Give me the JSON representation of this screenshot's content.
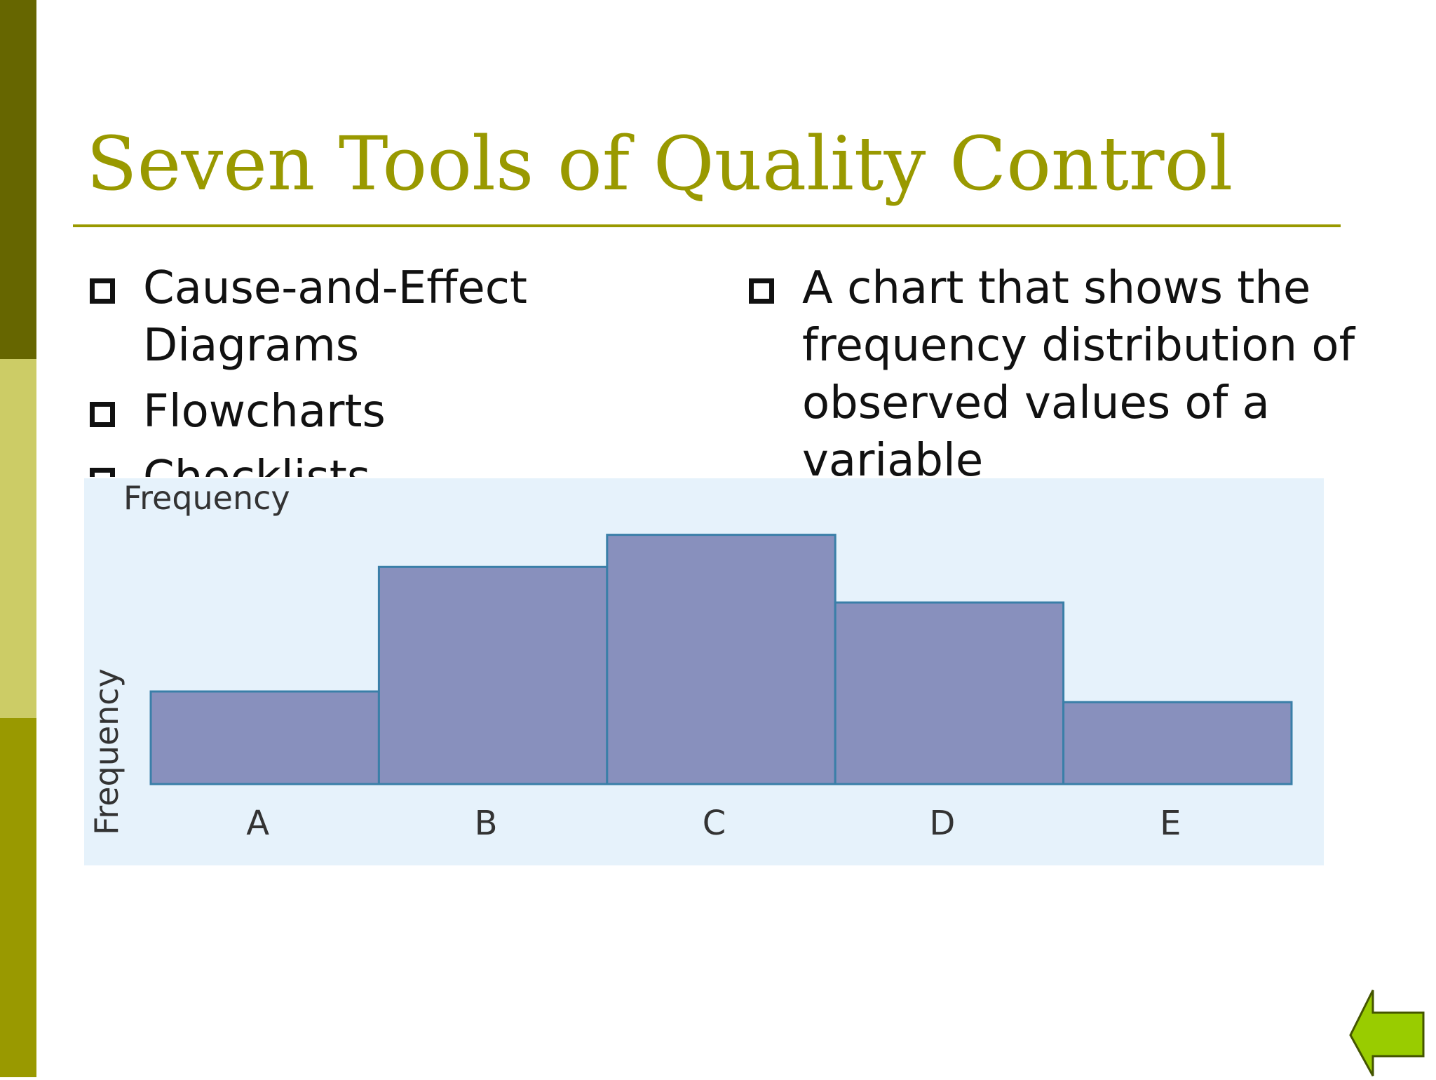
{
  "slide": {
    "title": "Seven Tools of Quality Control",
    "left_bullets": [
      "Cause-and-Effect Diagrams",
      "Flowcharts",
      "Checklists"
    ],
    "right_bullets": [
      "A chart that shows the frequency distribution of observed values of a variable"
    ]
  },
  "colors": {
    "accent": "#999900",
    "sidebar_top": "#666600",
    "sidebar_middle": "#cccc66",
    "sidebar_bottom": "#999900",
    "chart_background": "#e6f2fb",
    "bar_fill": "#8890bd",
    "bar_stroke": "#3a7fa8",
    "arrow_fill": "#99cc00"
  },
  "chart_data": {
    "type": "bar",
    "title": "Frequency",
    "xlabel": "",
    "ylabel": "Frequency",
    "categories": [
      "A",
      "B",
      "C",
      "D",
      "E"
    ],
    "values": [
      2.6,
      6.1,
      7.0,
      5.1,
      2.3
    ],
    "ylim": [
      0,
      7.8
    ],
    "grid": false,
    "bar_gap": 0
  },
  "navigation": {
    "back_icon": "back-arrow-icon"
  }
}
